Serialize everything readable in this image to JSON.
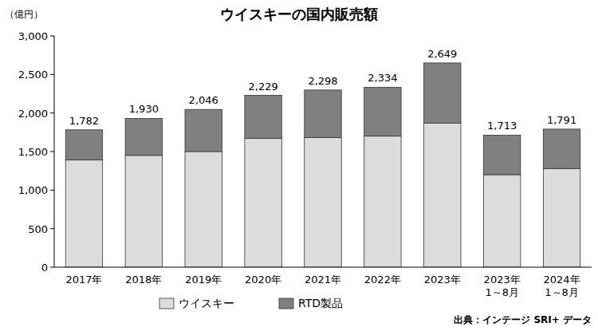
{
  "chart_data": {
    "type": "bar",
    "stacked": true,
    "title": "ウイスキーの国内販売額",
    "y_label": "（億円）",
    "source": "出典：インテージ SRI+ データ",
    "categories": [
      "2017年",
      "2018年",
      "2019年",
      "2020年",
      "2021年",
      "2022年",
      "2023年",
      "2023年\n1～8月",
      "2024年\n1～8月"
    ],
    "series": [
      {
        "name": "ウイスキー",
        "color": "#dcdcdc",
        "values": [
          1390,
          1450,
          1500,
          1670,
          1680,
          1700,
          1870,
          1200,
          1280
        ]
      },
      {
        "name": "RTD製品",
        "color": "#808080",
        "values": [
          392,
          480,
          546,
          559,
          618,
          634,
          779,
          513,
          511
        ]
      }
    ],
    "totals": [
      1782,
      1930,
      2046,
      2229,
      2298,
      2334,
      2649,
      1713,
      1791
    ],
    "total_labels": [
      "1,782",
      "1,930",
      "2,046",
      "2,229",
      "2,298",
      "2,334",
      "2,649",
      "1,713",
      "1,791"
    ],
    "ylim": [
      0,
      3000
    ],
    "yticks": [
      0,
      500,
      {
        "value": 1000,
        "label": "1,000"
      },
      {
        "value": 1500,
        "label": "1,500"
      },
      {
        "value": 2000,
        "label": "2,000"
      },
      {
        "value": 2500,
        "label": "2,500"
      },
      {
        "value": 3000,
        "label": "3,000"
      }
    ],
    "grid": false,
    "legend": "bottom"
  }
}
